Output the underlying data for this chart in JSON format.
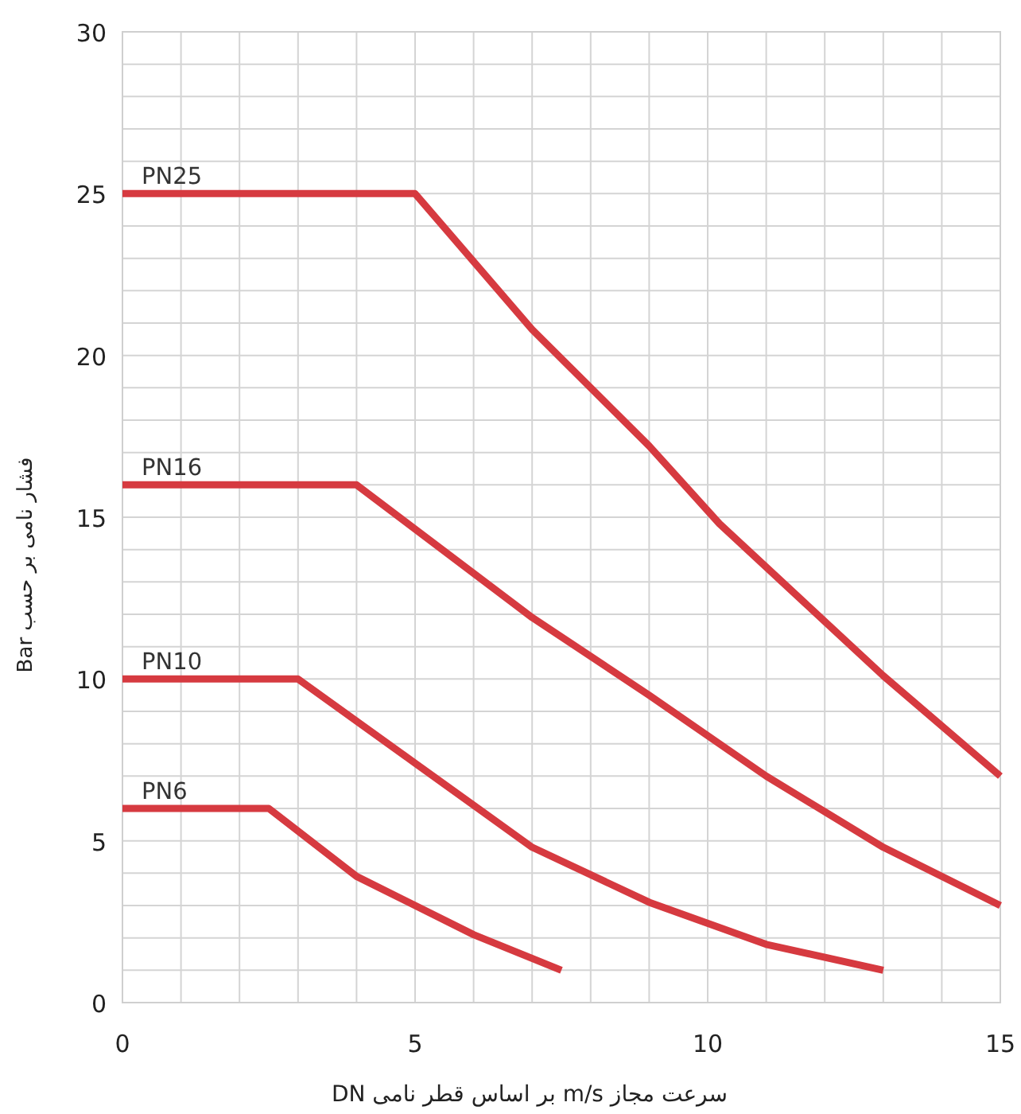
{
  "chart_data": {
    "type": "line",
    "xlabel": "سرعت مجاز m/s بر اساس قطر نامی DN",
    "ylabel": "فشار نامی بر حسب Bar",
    "xlim": [
      0,
      15
    ],
    "ylim": [
      0,
      30
    ],
    "xticks": [
      0,
      {
        "value": 1,
        "label": null
      },
      {
        "value": 2,
        "label": null
      },
      {
        "value": 3,
        "label": null
      },
      {
        "value": 4,
        "label": null
      },
      5,
      {
        "value": 6,
        "label": null
      },
      {
        "value": 7,
        "label": null
      },
      {
        "value": 8,
        "label": null
      },
      {
        "value": 9,
        "label": null
      },
      10,
      {
        "value": 11,
        "label": null
      },
      {
        "value": 12,
        "label": null
      },
      {
        "value": 13,
        "label": null
      },
      {
        "value": 14,
        "label": null
      },
      15
    ],
    "yticks": [
      0,
      {
        "value": 1,
        "label": null
      },
      {
        "value": 2,
        "label": null
      },
      {
        "value": 3,
        "label": null
      },
      {
        "value": 4,
        "label": null
      },
      5,
      {
        "value": 6,
        "label": null
      },
      {
        "value": 7,
        "label": null
      },
      {
        "value": 8,
        "label": null
      },
      {
        "value": 9,
        "label": null
      },
      10,
      {
        "value": 11,
        "label": null
      },
      {
        "value": 12,
        "label": null
      },
      {
        "value": 13,
        "label": null
      },
      {
        "value": 14,
        "label": null
      },
      15,
      {
        "value": 16,
        "label": null
      },
      {
        "value": 17,
        "label": null
      },
      {
        "value": 18,
        "label": null
      },
      {
        "value": 19,
        "label": null
      },
      20,
      {
        "value": 21,
        "label": null
      },
      {
        "value": 22,
        "label": null
      },
      {
        "value": 23,
        "label": null
      },
      {
        "value": 24,
        "label": null
      },
      25,
      {
        "value": 26,
        "label": null
      },
      {
        "value": 27,
        "label": null
      },
      {
        "value": 28,
        "label": null
      },
      {
        "value": 29,
        "label": null
      },
      30
    ],
    "grid": true,
    "marker": "none",
    "line_style": "solid",
    "series": [
      {
        "name": "PN25",
        "color": "#d63a40",
        "x": [
          0,
          5,
          7,
          9,
          10.2,
          13,
          15
        ],
        "values": [
          25,
          25,
          20.8,
          17.2,
          14.8,
          10.1,
          7
        ]
      },
      {
        "name": "PN16",
        "color": "#d63a40",
        "x": [
          0,
          4,
          7,
          9,
          11,
          13,
          15
        ],
        "values": [
          16,
          16,
          11.9,
          9.5,
          7.0,
          4.8,
          3
        ]
      },
      {
        "name": "PN10",
        "color": "#d63a40",
        "x": [
          0,
          3,
          5,
          7,
          9,
          11,
          13
        ],
        "values": [
          10,
          10,
          7.4,
          4.8,
          3.1,
          1.8,
          1
        ]
      },
      {
        "name": "PN6",
        "color": "#d63a40",
        "x": [
          0,
          2.5,
          4,
          6,
          7.5
        ],
        "values": [
          6,
          6,
          3.9,
          2.1,
          1
        ]
      }
    ]
  }
}
